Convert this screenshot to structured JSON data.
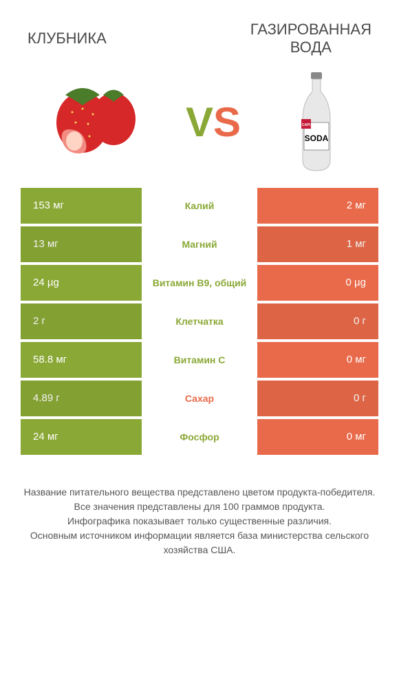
{
  "titles": {
    "left": "КЛУБНИКА",
    "right_line1": "ГАЗИРОВАННАЯ",
    "right_line2": "ВОДА"
  },
  "vs": {
    "v": "V",
    "s": "S"
  },
  "colors": {
    "green": "#8aa836",
    "orange": "#e96a4a",
    "text": "#4a4a4a"
  },
  "rows": [
    {
      "left": "153 мг",
      "label": "Калий",
      "right": "2 мг",
      "winner": "green"
    },
    {
      "left": "13 мг",
      "label": "Магний",
      "right": "1 мг",
      "winner": "green"
    },
    {
      "left": "24 µg",
      "label": "Витамин B9, общий",
      "right": "0 µg",
      "winner": "green"
    },
    {
      "left": "2 г",
      "label": "Клетчатка",
      "right": "0 г",
      "winner": "green"
    },
    {
      "left": "58.8 мг",
      "label": "Витамин C",
      "right": "0 мг",
      "winner": "green"
    },
    {
      "left": "4.89 г",
      "label": "Сахар",
      "right": "0 г",
      "winner": "orange"
    },
    {
      "left": "24 мг",
      "label": "Фосфор",
      "right": "0 мг",
      "winner": "green"
    }
  ],
  "footer": {
    "line1": "Название питательного вещества представлено цветом продукта-победителя.",
    "line2": "Все значения представлены для 100 граммов продукта.",
    "line3": "Инфографика показывает только существенные различия.",
    "line4": "Основным источником информации является база министерства сельского хозяйства США."
  },
  "bottle_label": {
    "cap": "CAPI",
    "soda": "SODA"
  }
}
